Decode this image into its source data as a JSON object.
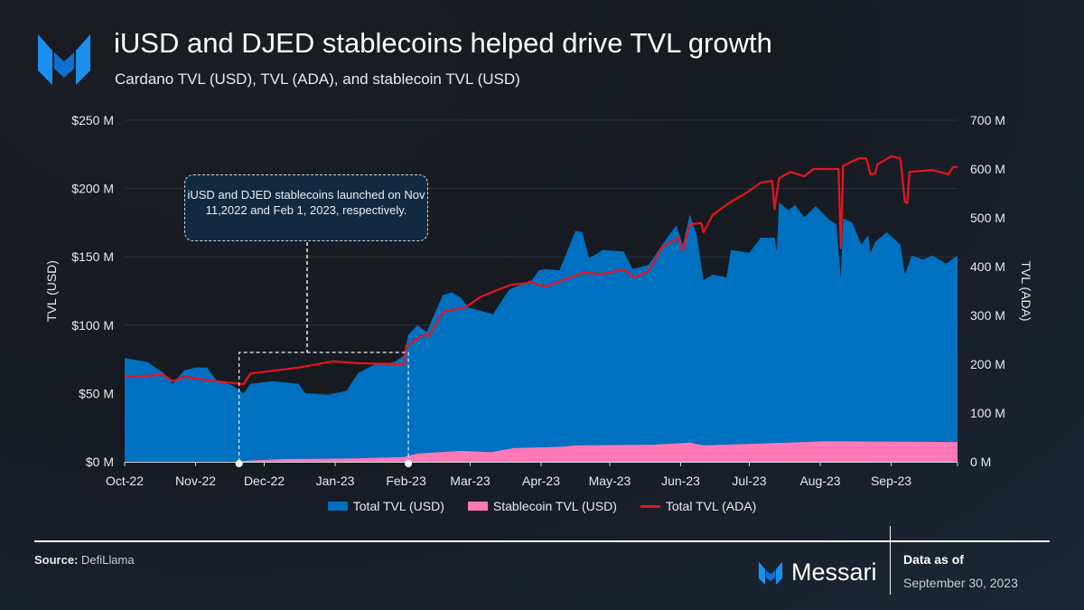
{
  "header": {
    "title": "iUSD and DJED stablecoins helped drive TVL growth",
    "subtitle": "Cardano TVL (USD), TVL (ADA), and stablecoin TVL (USD)"
  },
  "footer": {
    "source_label": "Source:",
    "source_value": "DefiLlama",
    "brand": "Messari",
    "asof_label": "Data as of",
    "asof_date": "September 30, 2023"
  },
  "colors": {
    "total_usd": "#0070c0",
    "stable": "#ff78b7",
    "ada": "#e8141c"
  },
  "chart_data": {
    "type": "area",
    "title": "iUSD and DJED stablecoins helped drive TVL growth",
    "ylabel": "TVL (USD)",
    "y2label": "TVL (ADA)",
    "ylim": [
      0,
      250
    ],
    "y2lim": [
      0,
      700
    ],
    "yticks": [
      "$0 M",
      "$50 M",
      "$100 M",
      "$150 M",
      "$200 M",
      "$250 M"
    ],
    "y2ticks": [
      "0 M",
      "100 M",
      "200 M",
      "300 M",
      "400 M",
      "500 M",
      "600 M",
      "700 M"
    ],
    "xrange": [
      "2022-10-01",
      "2023-09-30"
    ],
    "xticks": [
      {
        "date": "2022-10-01",
        "label": "Oct-22"
      },
      {
        "date": "2022-11-01",
        "label": "Nov-22"
      },
      {
        "date": "2022-12-01",
        "label": "Dec-22"
      },
      {
        "date": "2023-01-01",
        "label": "Jan-23"
      },
      {
        "date": "2023-02-01",
        "label": "Feb-23"
      },
      {
        "date": "2023-03-01",
        "label": "Mar-23"
      },
      {
        "date": "2023-04-01",
        "label": "Apr-23"
      },
      {
        "date": "2023-05-01",
        "label": "May-23"
      },
      {
        "date": "2023-06-01",
        "label": "Jun-23"
      },
      {
        "date": "2023-07-01",
        "label": "Jul-23"
      },
      {
        "date": "2023-08-01",
        "label": "Aug-23"
      },
      {
        "date": "2023-09-01",
        "label": "Sep-23"
      }
    ],
    "legend": [
      "Total TVL (USD)",
      "Stablecoin TVL (USD)",
      "Total TVL (ADA)"
    ],
    "legend_position": "bottom",
    "annotation": {
      "text": "iUSD and DJED stablecoins launched on Nov 11,2022 and Feb 1, 2023, respectively.",
      "range": [
        "2022-11-20",
        "2023-02-02"
      ]
    },
    "series": [
      {
        "name": "Total TVL (USD)",
        "axis": "left",
        "unit": "USD M",
        "points": [
          [
            "2022-10-01",
            76
          ],
          [
            "2022-10-11",
            73
          ],
          [
            "2022-10-18",
            65
          ],
          [
            "2022-10-22",
            57
          ],
          [
            "2022-10-27",
            67
          ],
          [
            "2022-11-01",
            69
          ],
          [
            "2022-11-06",
            69
          ],
          [
            "2022-11-10",
            60
          ],
          [
            "2022-11-17",
            56
          ],
          [
            "2022-11-22",
            50
          ],
          [
            "2022-11-25",
            57
          ],
          [
            "2022-12-05",
            59
          ],
          [
            "2022-12-16",
            57
          ],
          [
            "2022-12-19",
            50
          ],
          [
            "2022-12-29",
            49
          ],
          [
            "2023-01-06",
            52
          ],
          [
            "2023-01-11",
            65
          ],
          [
            "2023-01-18",
            71
          ],
          [
            "2023-01-27",
            73
          ],
          [
            "2023-01-31",
            78
          ],
          [
            "2023-02-02",
            93
          ],
          [
            "2023-02-06",
            100
          ],
          [
            "2023-02-10",
            95
          ],
          [
            "2023-02-17",
            122
          ],
          [
            "2023-02-21",
            124
          ],
          [
            "2023-02-25",
            120
          ],
          [
            "2023-02-28",
            113
          ],
          [
            "2023-03-11",
            108
          ],
          [
            "2023-03-18",
            126
          ],
          [
            "2023-03-28",
            133
          ],
          [
            "2023-03-31",
            140
          ],
          [
            "2023-04-03",
            141
          ],
          [
            "2023-04-09",
            140
          ],
          [
            "2023-04-16",
            169
          ],
          [
            "2023-04-19",
            168
          ],
          [
            "2023-04-22",
            149
          ],
          [
            "2023-04-28",
            155
          ],
          [
            "2023-05-07",
            154
          ],
          [
            "2023-05-11",
            141
          ],
          [
            "2023-05-18",
            144
          ],
          [
            "2023-05-24",
            159
          ],
          [
            "2023-05-30",
            173
          ],
          [
            "2023-06-02",
            159
          ],
          [
            "2023-06-05",
            181
          ],
          [
            "2023-06-08",
            166
          ],
          [
            "2023-06-11",
            133
          ],
          [
            "2023-06-15",
            137
          ],
          [
            "2023-06-21",
            135
          ],
          [
            "2023-06-23",
            155
          ],
          [
            "2023-07-01",
            153
          ],
          [
            "2023-07-06",
            164
          ],
          [
            "2023-07-12",
            164
          ],
          [
            "2023-07-13",
            154
          ],
          [
            "2023-07-14",
            190
          ],
          [
            "2023-07-18",
            184
          ],
          [
            "2023-07-21",
            188
          ],
          [
            "2023-07-25",
            179
          ],
          [
            "2023-07-30",
            187
          ],
          [
            "2023-08-05",
            177
          ],
          [
            "2023-08-08",
            174
          ],
          [
            "2023-08-10",
            135
          ],
          [
            "2023-08-11",
            178
          ],
          [
            "2023-08-15",
            175
          ],
          [
            "2023-08-19",
            159
          ],
          [
            "2023-08-22",
            166
          ],
          [
            "2023-08-23",
            153
          ],
          [
            "2023-08-25",
            161
          ],
          [
            "2023-08-30",
            168
          ],
          [
            "2023-09-05",
            159
          ],
          [
            "2023-09-07",
            137
          ],
          [
            "2023-09-10",
            151
          ],
          [
            "2023-09-15",
            148
          ],
          [
            "2023-09-19",
            151
          ],
          [
            "2023-09-25",
            145
          ],
          [
            "2023-09-30",
            151
          ]
        ]
      },
      {
        "name": "Stablecoin TVL (USD)",
        "axis": "left",
        "unit": "USD M",
        "points": [
          [
            "2022-11-18",
            0
          ],
          [
            "2022-11-25",
            1
          ],
          [
            "2022-12-10",
            2
          ],
          [
            "2023-01-10",
            2.5
          ],
          [
            "2023-01-31",
            3.5
          ],
          [
            "2023-02-06",
            6
          ],
          [
            "2023-02-25",
            8
          ],
          [
            "2023-03-10",
            7
          ],
          [
            "2023-03-20",
            10
          ],
          [
            "2023-04-10",
            11
          ],
          [
            "2023-04-16",
            12
          ],
          [
            "2023-05-20",
            12.5
          ],
          [
            "2023-06-05",
            14
          ],
          [
            "2023-06-11",
            12
          ],
          [
            "2023-07-18",
            14
          ],
          [
            "2023-08-03",
            15
          ],
          [
            "2023-09-30",
            14.5
          ]
        ]
      },
      {
        "name": "Total TVL (ADA)",
        "axis": "right",
        "unit": "ADA M",
        "points": [
          [
            "2022-10-01",
            174
          ],
          [
            "2022-10-18",
            178
          ],
          [
            "2022-10-22",
            165
          ],
          [
            "2022-10-27",
            174
          ],
          [
            "2022-11-10",
            165
          ],
          [
            "2022-11-22",
            159
          ],
          [
            "2022-11-25",
            181
          ],
          [
            "2022-12-16",
            193
          ],
          [
            "2022-12-31",
            206
          ],
          [
            "2023-01-11",
            202
          ],
          [
            "2023-01-31",
            200
          ],
          [
            "2023-02-01",
            237
          ],
          [
            "2023-02-09",
            261
          ],
          [
            "2023-02-11",
            257
          ],
          [
            "2023-02-17",
            307
          ],
          [
            "2023-02-27",
            317
          ],
          [
            "2023-03-06",
            339
          ],
          [
            "2023-03-19",
            363
          ],
          [
            "2023-03-28",
            367
          ],
          [
            "2023-04-03",
            359
          ],
          [
            "2023-04-14",
            378
          ],
          [
            "2023-04-19",
            387
          ],
          [
            "2023-04-28",
            385
          ],
          [
            "2023-05-07",
            394
          ],
          [
            "2023-05-12",
            378
          ],
          [
            "2023-05-18",
            391
          ],
          [
            "2023-05-24",
            441
          ],
          [
            "2023-05-31",
            459
          ],
          [
            "2023-06-02",
            433
          ],
          [
            "2023-06-05",
            487
          ],
          [
            "2023-06-10",
            489
          ],
          [
            "2023-06-11",
            470
          ],
          [
            "2023-06-15",
            506
          ],
          [
            "2023-06-23",
            533
          ],
          [
            "2023-06-30",
            552
          ],
          [
            "2023-07-06",
            572
          ],
          [
            "2023-07-11",
            576
          ],
          [
            "2023-07-12",
            517
          ],
          [
            "2023-07-14",
            581
          ],
          [
            "2023-07-19",
            594
          ],
          [
            "2023-07-25",
            585
          ],
          [
            "2023-07-29",
            600
          ],
          [
            "2023-08-09",
            600
          ],
          [
            "2023-08-10",
            437
          ],
          [
            "2023-08-11",
            607
          ],
          [
            "2023-08-18",
            622
          ],
          [
            "2023-08-21",
            622
          ],
          [
            "2023-08-23",
            589
          ],
          [
            "2023-08-25",
            591
          ],
          [
            "2023-08-26",
            609
          ],
          [
            "2023-09-01",
            626
          ],
          [
            "2023-09-05",
            622
          ],
          [
            "2023-09-07",
            533
          ],
          [
            "2023-09-08",
            530
          ],
          [
            "2023-09-09",
            594
          ],
          [
            "2023-09-19",
            598
          ],
          [
            "2023-09-26",
            589
          ],
          [
            "2023-09-28",
            604
          ],
          [
            "2023-09-30",
            604
          ]
        ]
      }
    ]
  }
}
